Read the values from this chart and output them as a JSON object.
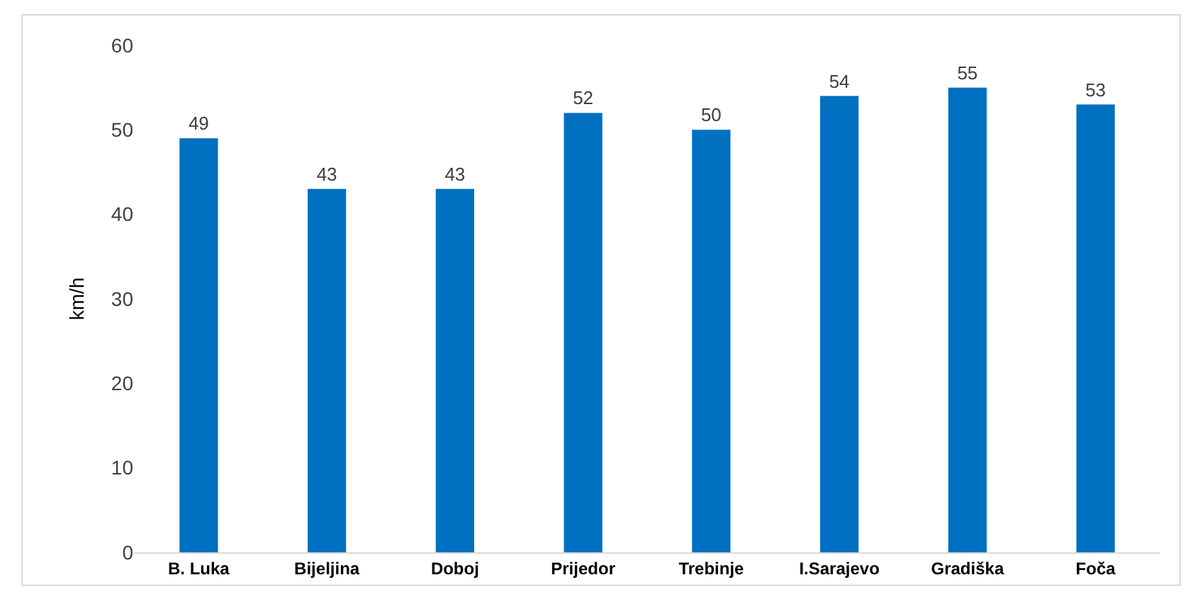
{
  "chart_data": {
    "type": "bar",
    "ylabel": "km/h",
    "categories": [
      "B. Luka",
      "Bijeljina",
      "Doboj",
      "Prijedor",
      "Trebinje",
      "I.Sarajevo",
      "Gradiška",
      "Foča"
    ],
    "values": [
      49,
      43,
      43,
      52,
      50,
      54,
      55,
      53
    ],
    "color": "#0070c0",
    "ylim": [
      0,
      60
    ],
    "yticks": [
      0,
      10,
      20,
      30,
      40,
      50,
      60
    ],
    "data_labels": true,
    "grid": false,
    "legend": false
  }
}
